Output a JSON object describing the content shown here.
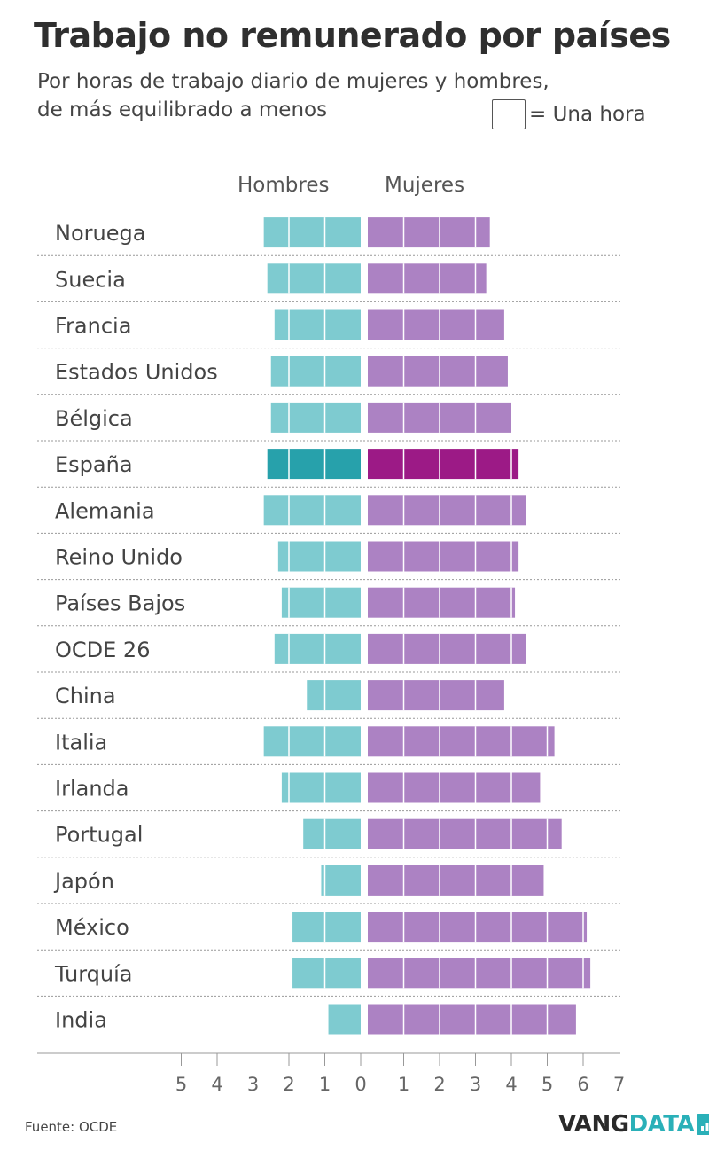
{
  "title": "Trabajo no remunerado por países",
  "subtitle_line1": "Por horas de trabajo diario de mujeres y hombres,",
  "subtitle_line2": "de más equilibrado a menos",
  "legend_label": "= Una hora",
  "source": "Fuente: OCDE",
  "logo": {
    "part1": "VANG",
    "part2": "DATA"
  },
  "colors": {
    "hombres": "#7ecbd0",
    "mujeres": "#ac82c3",
    "hombres_highlight": "#27a1ab",
    "mujeres_highlight": "#9c1a86",
    "logo_dark": "#2a2a2a",
    "logo_accent": "#2ab0b8"
  },
  "chart_data": {
    "type": "bar",
    "orientation": "horizontal-diverging",
    "unit": "horas",
    "series": [
      {
        "name": "Hombres",
        "values": [
          2.7,
          2.6,
          2.4,
          2.5,
          2.5,
          2.6,
          2.7,
          2.3,
          2.2,
          2.4,
          1.5,
          2.7,
          2.2,
          1.6,
          1.1,
          1.9,
          1.9,
          0.9
        ]
      },
      {
        "name": "Mujeres",
        "values": [
          3.4,
          3.3,
          3.8,
          3.9,
          4.0,
          4.2,
          4.4,
          4.2,
          4.1,
          4.4,
          3.8,
          5.2,
          4.8,
          5.4,
          4.9,
          6.1,
          6.2,
          5.8
        ]
      }
    ],
    "categories": [
      "Noruega",
      "Suecia",
      "Francia",
      "Estados Unidos",
      "Bélgica",
      "España",
      "Alemania",
      "Reino Unido",
      "Países Bajos",
      "OCDE 26",
      "China",
      "Italia",
      "Irlanda",
      "Portugal",
      "Japón",
      "México",
      "Turquía",
      "India"
    ],
    "highlight": "España",
    "x_ticks_hombres": [
      "5",
      "4",
      "3",
      "2",
      "1",
      "0"
    ],
    "x_ticks_mujeres": [
      "1",
      "2",
      "3",
      "4",
      "5",
      "6",
      "7"
    ],
    "xlim_hombres": [
      0,
      5
    ],
    "xlim_mujeres": [
      0,
      7
    ],
    "legend": "top-right"
  }
}
